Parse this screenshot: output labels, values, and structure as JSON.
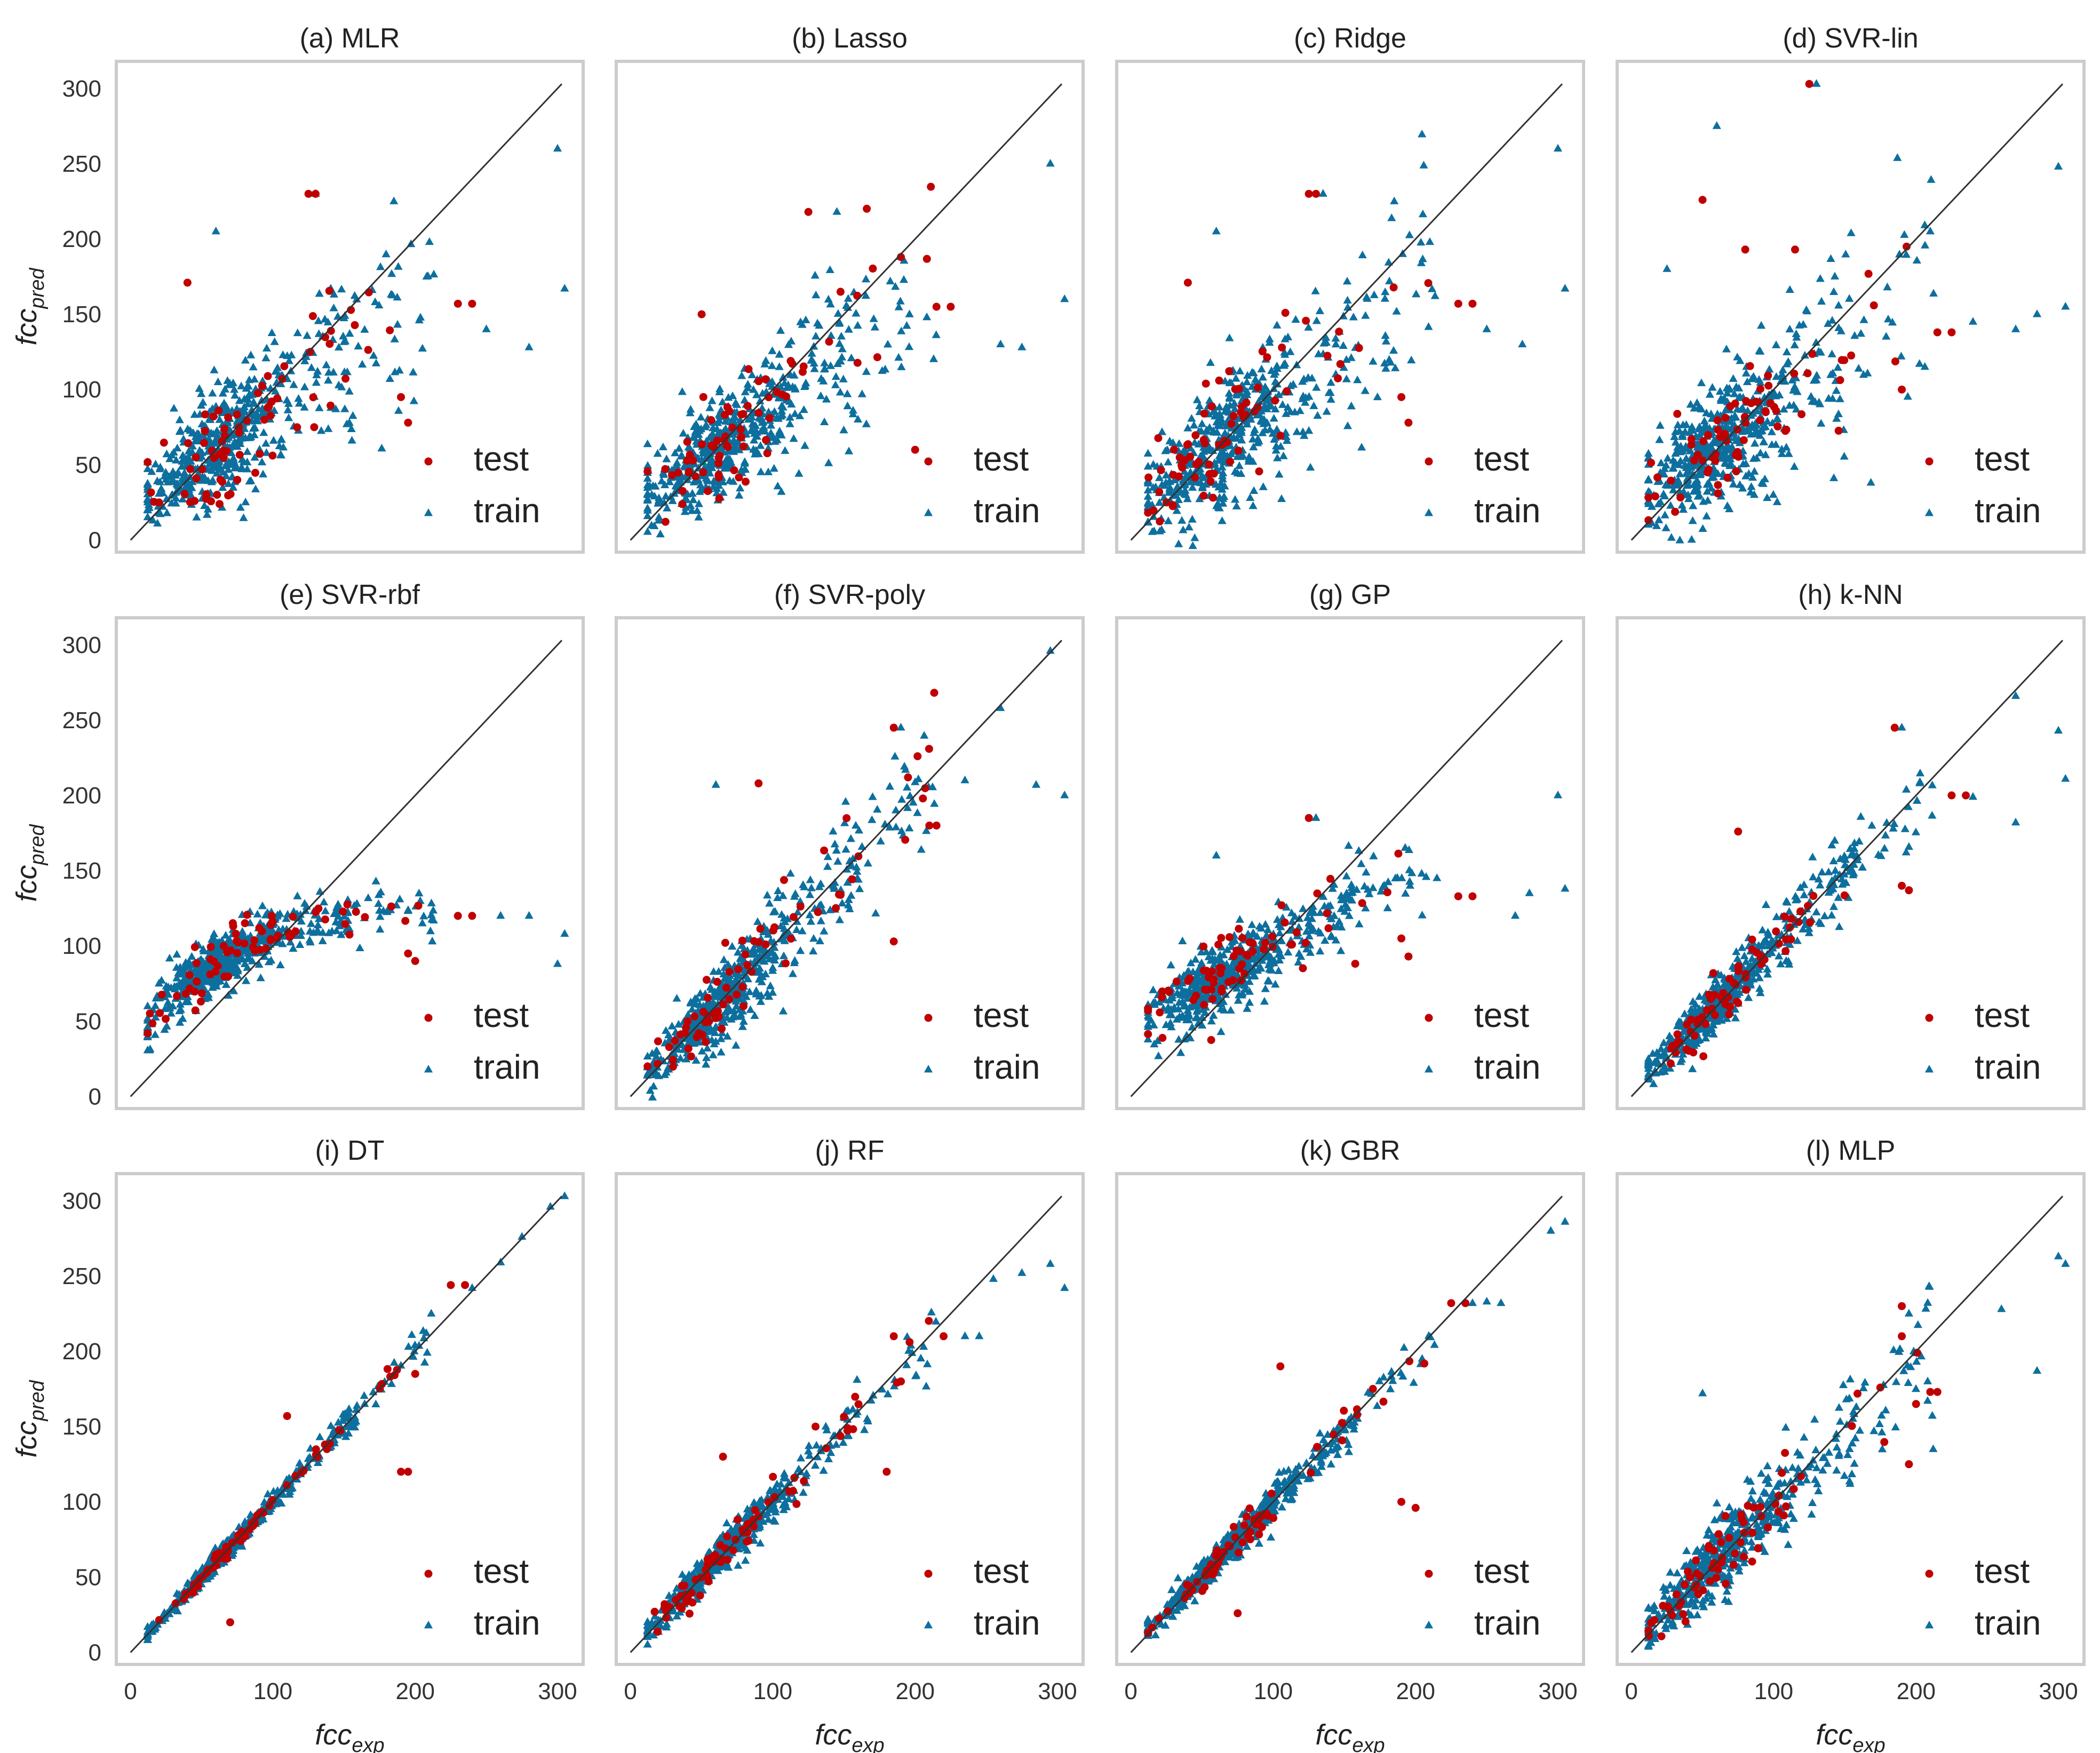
{
  "figure": {
    "x_axis_label": {
      "main": "fcc",
      "sub": "exp"
    },
    "y_axis_label": {
      "main": "fcc",
      "sub": "pred"
    }
  },
  "colors": {
    "test": "#c00000",
    "train": "#0d6f9e",
    "identity_line": "#333333"
  },
  "chart_data": [
    {
      "type": "scatter",
      "title": "(a) MLR",
      "xlim": [
        -10,
        318
      ],
      "ylim": [
        -8,
        318
      ],
      "x_ticks": [
        "0",
        "100",
        "200",
        "300"
      ],
      "y_ticks": [
        "0",
        "50",
        "100",
        "150",
        "200",
        "250",
        "300"
      ],
      "legend": [
        "test",
        "train"
      ],
      "identity_line": [
        [
          0,
          0
        ],
        [
          303,
          303
        ]
      ],
      "train": {
        "slope": 0.68,
        "intercept": 22,
        "noise": 20,
        "n": 520
      },
      "train_outliers": [
        [
          300,
          260
        ],
        [
          305,
          167
        ],
        [
          60,
          205
        ],
        [
          185,
          225
        ],
        [
          210,
          198
        ],
        [
          130,
          230
        ],
        [
          250,
          140
        ],
        [
          280,
          128
        ]
      ],
      "test_outliers": [
        [
          125,
          230
        ],
        [
          130,
          230
        ],
        [
          40,
          171
        ],
        [
          195,
          78
        ],
        [
          230,
          157
        ],
        [
          240,
          157
        ],
        [
          190,
          95
        ],
        [
          20,
          25
        ],
        [
          45,
          26
        ],
        [
          75,
          40
        ]
      ]
    },
    {
      "type": "scatter",
      "title": "(b) Lasso",
      "xlim": [
        -10,
        318
      ],
      "ylim": [
        -8,
        318
      ],
      "x_ticks": [
        "0",
        "100",
        "200",
        "300"
      ],
      "y_ticks": [
        "0",
        "50",
        "100",
        "150",
        "200",
        "250",
        "300"
      ],
      "legend": [
        "test",
        "train"
      ],
      "identity_line": [
        [
          0,
          0
        ],
        [
          303,
          303
        ]
      ],
      "train": {
        "slope": 0.68,
        "intercept": 22,
        "noise": 20,
        "n": 520
      },
      "train_outliers": [
        [
          295,
          250
        ],
        [
          305,
          160
        ],
        [
          145,
          218
        ],
        [
          190,
          188
        ],
        [
          260,
          130
        ],
        [
          275,
          128
        ],
        [
          20,
          15
        ],
        [
          15,
          30
        ]
      ],
      "test_outliers": [
        [
          125,
          218
        ],
        [
          190,
          188
        ],
        [
          50,
          150
        ],
        [
          200,
          60
        ],
        [
          225,
          155
        ],
        [
          215,
          155
        ]
      ]
    },
    {
      "type": "scatter",
      "title": "(c) Ridge",
      "xlim": [
        -10,
        318
      ],
      "ylim": [
        -8,
        318
      ],
      "x_ticks": [
        "0",
        "100",
        "200",
        "300"
      ],
      "y_ticks": [
        "0",
        "50",
        "100",
        "150",
        "200",
        "250",
        "300"
      ],
      "legend": [
        "test",
        "train"
      ],
      "identity_line": [
        [
          0,
          0
        ],
        [
          303,
          303
        ]
      ],
      "train": {
        "slope": 0.68,
        "intercept": 22,
        "noise": 20,
        "n": 520
      },
      "train_outliers": [
        [
          300,
          260
        ],
        [
          305,
          167
        ],
        [
          60,
          205
        ],
        [
          185,
          225
        ],
        [
          210,
          198
        ],
        [
          135,
          230
        ],
        [
          250,
          140
        ],
        [
          275,
          130
        ]
      ],
      "test_outliers": [
        [
          125,
          230
        ],
        [
          130,
          230
        ],
        [
          40,
          171
        ],
        [
          195,
          78
        ],
        [
          230,
          157
        ],
        [
          240,
          157
        ],
        [
          190,
          95
        ],
        [
          25,
          25
        ]
      ]
    },
    {
      "type": "scatter",
      "title": "(d) SVR-lin",
      "xlim": [
        -10,
        318
      ],
      "ylim": [
        -8,
        318
      ],
      "x_ticks": [
        "0",
        "100",
        "200",
        "300"
      ],
      "y_ticks": [
        "0",
        "50",
        "100",
        "150",
        "200",
        "250",
        "300"
      ],
      "legend": [
        "test",
        "train"
      ],
      "identity_line": [
        [
          0,
          0
        ],
        [
          303,
          303
        ]
      ],
      "train": {
        "slope": 0.72,
        "intercept": 20,
        "noise": 22,
        "n": 520
      },
      "train_outliers": [
        [
          130,
          303
        ],
        [
          60,
          275
        ],
        [
          300,
          248
        ],
        [
          305,
          155
        ],
        [
          210,
          205
        ],
        [
          240,
          145
        ],
        [
          270,
          140
        ],
        [
          285,
          150
        ],
        [
          25,
          180
        ]
      ],
      "test_outliers": [
        [
          125,
          303
        ],
        [
          50,
          226
        ],
        [
          80,
          193
        ],
        [
          115,
          193
        ],
        [
          215,
          138
        ],
        [
          225,
          138
        ],
        [
          190,
          100
        ]
      ]
    },
    {
      "type": "scatter",
      "title": "(e) SVR-rbf",
      "xlim": [
        -10,
        318
      ],
      "ylim": [
        -8,
        318
      ],
      "x_ticks": [
        "0",
        "100",
        "200",
        "300"
      ],
      "y_ticks": [
        "0",
        "50",
        "100",
        "150",
        "200",
        "250",
        "300"
      ],
      "legend": [
        "test",
        "train"
      ],
      "identity_line": [
        [
          0,
          0
        ],
        [
          303,
          303
        ]
      ],
      "train": {
        "model": "rbf",
        "n": 520
      },
      "train_outliers": [
        [
          300,
          88
        ],
        [
          305,
          108
        ],
        [
          260,
          120
        ],
        [
          280,
          120
        ],
        [
          20,
          75
        ],
        [
          15,
          48
        ]
      ],
      "test_outliers": [
        [
          230,
          120
        ],
        [
          240,
          120
        ],
        [
          200,
          90
        ],
        [
          195,
          95
        ]
      ]
    },
    {
      "type": "scatter",
      "title": "(f) SVR-poly",
      "xlim": [
        -10,
        318
      ],
      "ylim": [
        -8,
        318
      ],
      "x_ticks": [
        "0",
        "100",
        "200",
        "300"
      ],
      "y_ticks": [
        "0",
        "50",
        "100",
        "150",
        "200",
        "250",
        "300"
      ],
      "legend": [
        "test",
        "train"
      ],
      "identity_line": [
        [
          0,
          0
        ],
        [
          303,
          303
        ]
      ],
      "train": {
        "slope": 0.98,
        "intercept": 2,
        "noise": 13,
        "n": 520
      },
      "train_outliers": [
        [
          295,
          296
        ],
        [
          260,
          258
        ],
        [
          305,
          200
        ],
        [
          285,
          207
        ],
        [
          60,
          207
        ],
        [
          235,
          210
        ],
        [
          190,
          245
        ]
      ],
      "test_outliers": [
        [
          185,
          245
        ],
        [
          90,
          208
        ],
        [
          210,
          180
        ],
        [
          215,
          180
        ],
        [
          185,
          103
        ],
        [
          195,
          212
        ]
      ]
    },
    {
      "type": "scatter",
      "title": "(g) GP",
      "xlim": [
        -10,
        318
      ],
      "ylim": [
        -8,
        318
      ],
      "x_ticks": [
        "0",
        "100",
        "200",
        "300"
      ],
      "y_ticks": [
        "0",
        "50",
        "100",
        "150",
        "200",
        "250",
        "300"
      ],
      "legend": [
        "test",
        "train"
      ],
      "identity_line": [
        [
          0,
          0
        ],
        [
          303,
          303
        ]
      ],
      "train": {
        "model": "gp",
        "n": 520
      },
      "train_outliers": [
        [
          300,
          200
        ],
        [
          305,
          138
        ],
        [
          130,
          185
        ],
        [
          60,
          160
        ],
        [
          270,
          120
        ],
        [
          280,
          135
        ],
        [
          215,
          145
        ]
      ],
      "test_outliers": [
        [
          125,
          185
        ],
        [
          230,
          133
        ],
        [
          240,
          133
        ],
        [
          195,
          93
        ],
        [
          190,
          105
        ]
      ]
    },
    {
      "type": "scatter",
      "title": "(h) k-NN",
      "xlim": [
        -10,
        318
      ],
      "ylim": [
        -8,
        318
      ],
      "x_ticks": [
        "0",
        "100",
        "200",
        "300"
      ],
      "y_ticks": [
        "0",
        "50",
        "100",
        "150",
        "200",
        "250",
        "300"
      ],
      "legend": [
        "test",
        "train"
      ],
      "identity_line": [
        [
          0,
          0
        ],
        [
          303,
          303
        ]
      ],
      "train": {
        "slope": 0.97,
        "intercept": 3,
        "noise": 9,
        "n": 520
      },
      "train_outliers": [
        [
          270,
          266
        ],
        [
          300,
          243
        ],
        [
          305,
          211
        ],
        [
          270,
          182
        ],
        [
          240,
          199
        ],
        [
          190,
          245
        ]
      ],
      "test_outliers": [
        [
          185,
          245
        ],
        [
          75,
          176
        ],
        [
          225,
          200
        ],
        [
          235,
          200
        ],
        [
          190,
          140
        ],
        [
          195,
          137
        ]
      ]
    },
    {
      "type": "scatter",
      "title": "(i) DT",
      "xlim": [
        -10,
        318
      ],
      "ylim": [
        -8,
        318
      ],
      "x_ticks": [
        "0",
        "100",
        "200",
        "300"
      ],
      "y_ticks": [
        "0",
        "50",
        "100",
        "150",
        "200",
        "250",
        "300"
      ],
      "legend": [
        "test",
        "train"
      ],
      "identity_line": [
        [
          0,
          0
        ],
        [
          303,
          303
        ]
      ],
      "train": {
        "slope": 1.0,
        "intercept": 0,
        "noise": 3,
        "n": 520
      },
      "train_outliers": [
        [
          305,
          303
        ],
        [
          295,
          296
        ],
        [
          275,
          276
        ],
        [
          260,
          259
        ],
        [
          240,
          242
        ]
      ],
      "test_outliers": [
        [
          225,
          244
        ],
        [
          235,
          244
        ],
        [
          190,
          120
        ],
        [
          195,
          120
        ],
        [
          70,
          20
        ],
        [
          110,
          157
        ],
        [
          200,
          185
        ]
      ]
    },
    {
      "type": "scatter",
      "title": "(j) RF",
      "xlim": [
        -10,
        318
      ],
      "ylim": [
        -8,
        318
      ],
      "x_ticks": [
        "0",
        "100",
        "200",
        "300"
      ],
      "y_ticks": [
        "0",
        "50",
        "100",
        "150",
        "200",
        "250",
        "300"
      ],
      "legend": [
        "test",
        "train"
      ],
      "identity_line": [
        [
          0,
          0
        ],
        [
          303,
          303
        ]
      ],
      "train": {
        "slope": 0.97,
        "intercept": 3,
        "noise": 6,
        "n": 520
      },
      "train_outliers": [
        [
          295,
          258
        ],
        [
          305,
          242
        ],
        [
          275,
          252
        ],
        [
          255,
          248
        ],
        [
          235,
          210
        ],
        [
          245,
          210
        ]
      ],
      "test_outliers": [
        [
          185,
          210
        ],
        [
          220,
          210
        ],
        [
          190,
          180
        ],
        [
          180,
          120
        ],
        [
          65,
          130
        ],
        [
          130,
          150
        ]
      ]
    },
    {
      "type": "scatter",
      "title": "(k) GBR",
      "xlim": [
        -10,
        318
      ],
      "ylim": [
        -8,
        318
      ],
      "x_ticks": [
        "0",
        "100",
        "200",
        "300"
      ],
      "y_ticks": [
        "0",
        "50",
        "100",
        "150",
        "200",
        "250",
        "300"
      ],
      "legend": [
        "test",
        "train"
      ],
      "identity_line": [
        [
          0,
          0
        ],
        [
          303,
          303
        ]
      ],
      "train": {
        "slope": 0.96,
        "intercept": 3,
        "noise": 5,
        "n": 520
      },
      "train_outliers": [
        [
          305,
          286
        ],
        [
          295,
          280
        ],
        [
          240,
          232
        ],
        [
          250,
          233
        ],
        [
          260,
          232
        ]
      ],
      "test_outliers": [
        [
          225,
          232
        ],
        [
          235,
          232
        ],
        [
          190,
          100
        ],
        [
          200,
          96
        ],
        [
          75,
          26
        ],
        [
          105,
          190
        ],
        [
          170,
          175
        ]
      ]
    },
    {
      "type": "scatter",
      "title": "(l) MLP",
      "xlim": [
        -10,
        318
      ],
      "ylim": [
        -8,
        318
      ],
      "x_ticks": [
        "0",
        "100",
        "200",
        "300"
      ],
      "y_ticks": [
        "0",
        "50",
        "100",
        "150",
        "200",
        "250",
        "300"
      ],
      "legend": [
        "test",
        "train"
      ],
      "identity_line": [
        [
          0,
          0
        ],
        [
          303,
          303
        ]
      ],
      "train": {
        "slope": 0.92,
        "intercept": 6,
        "noise": 13,
        "n": 520
      },
      "train_outliers": [
        [
          300,
          263
        ],
        [
          305,
          258
        ],
        [
          285,
          187
        ],
        [
          260,
          228
        ],
        [
          50,
          172
        ],
        [
          195,
          225
        ]
      ],
      "test_outliers": [
        [
          190,
          230
        ],
        [
          210,
          173
        ],
        [
          215,
          173
        ],
        [
          195,
          125
        ],
        [
          190,
          210
        ],
        [
          200,
          165
        ]
      ]
    }
  ]
}
